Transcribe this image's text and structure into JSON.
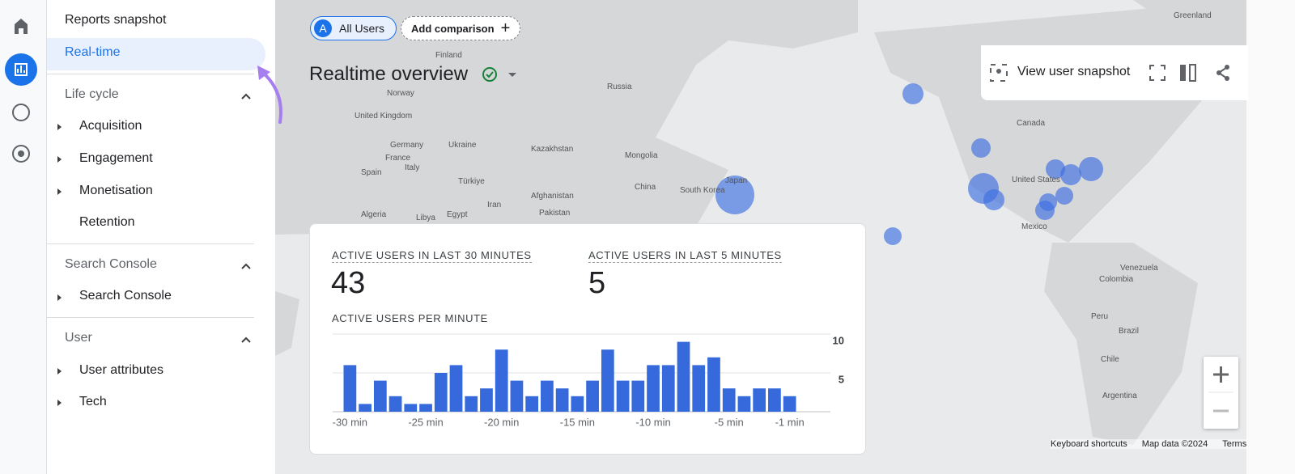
{
  "nav": {
    "items": [
      "Reports snapshot",
      "Real-time"
    ],
    "sections": [
      {
        "title": "Life cycle",
        "items": [
          "Acquisition",
          "Engagement",
          "Monetisation",
          "Retention"
        ]
      },
      {
        "title": "Search Console",
        "items": [
          "Search Console"
        ]
      },
      {
        "title": "User",
        "items": [
          "User attributes",
          "Tech"
        ]
      }
    ]
  },
  "toolbar": {
    "avatar": "A",
    "segment": "All Users",
    "add_comparison": "Add comparison"
  },
  "header": {
    "title": "Realtime overview",
    "view_snapshot": "View user snapshot"
  },
  "metrics": [
    {
      "label": "ACTIVE USERS IN LAST 30 MINUTES",
      "value": 43
    },
    {
      "label": "ACTIVE USERS IN LAST 5 MINUTES",
      "value": 5
    }
  ],
  "chart_data": {
    "type": "bar",
    "title": "ACTIVE USERS PER MINUTE",
    "categories": [
      "-30 min",
      null,
      null,
      null,
      null,
      "-25 min",
      null,
      null,
      null,
      null,
      "-20 min",
      null,
      null,
      null,
      null,
      "-15 min",
      null,
      null,
      null,
      null,
      "-10 min",
      null,
      null,
      null,
      null,
      "-5 min",
      null,
      null,
      null,
      "-1 min"
    ],
    "values": [
      6,
      1,
      4,
      2,
      1,
      1,
      5,
      6,
      2,
      3,
      8,
      4,
      2,
      4,
      3,
      2,
      4,
      8,
      4,
      4,
      6,
      6,
      9,
      6,
      7,
      3,
      2,
      3,
      3,
      2
    ],
    "color": "#3569dc",
    "ylim": [
      0,
      10
    ],
    "yticks": [
      5,
      10
    ],
    "grid": true
  },
  "map": {
    "labels": [
      "Greenland",
      "Finland",
      "Norway",
      "Russia",
      "United Kingdom",
      "Germany",
      "Ukraine",
      "France",
      "Kazakhstan",
      "Mongolia",
      "Italy",
      "Spain",
      "Türkiye",
      "China",
      "South Korea",
      "Japan",
      "Afghanistan",
      "Algeria",
      "Libya",
      "Egypt",
      "Iran",
      "Pakistan",
      "Canada",
      "United States",
      "Mexico",
      "Venezuela",
      "Colombia",
      "Peru",
      "Brazil",
      "Chile",
      "Argentina"
    ],
    "footer": [
      "Keyboard shortcuts",
      "Map data ©2024",
      "Terms"
    ]
  }
}
